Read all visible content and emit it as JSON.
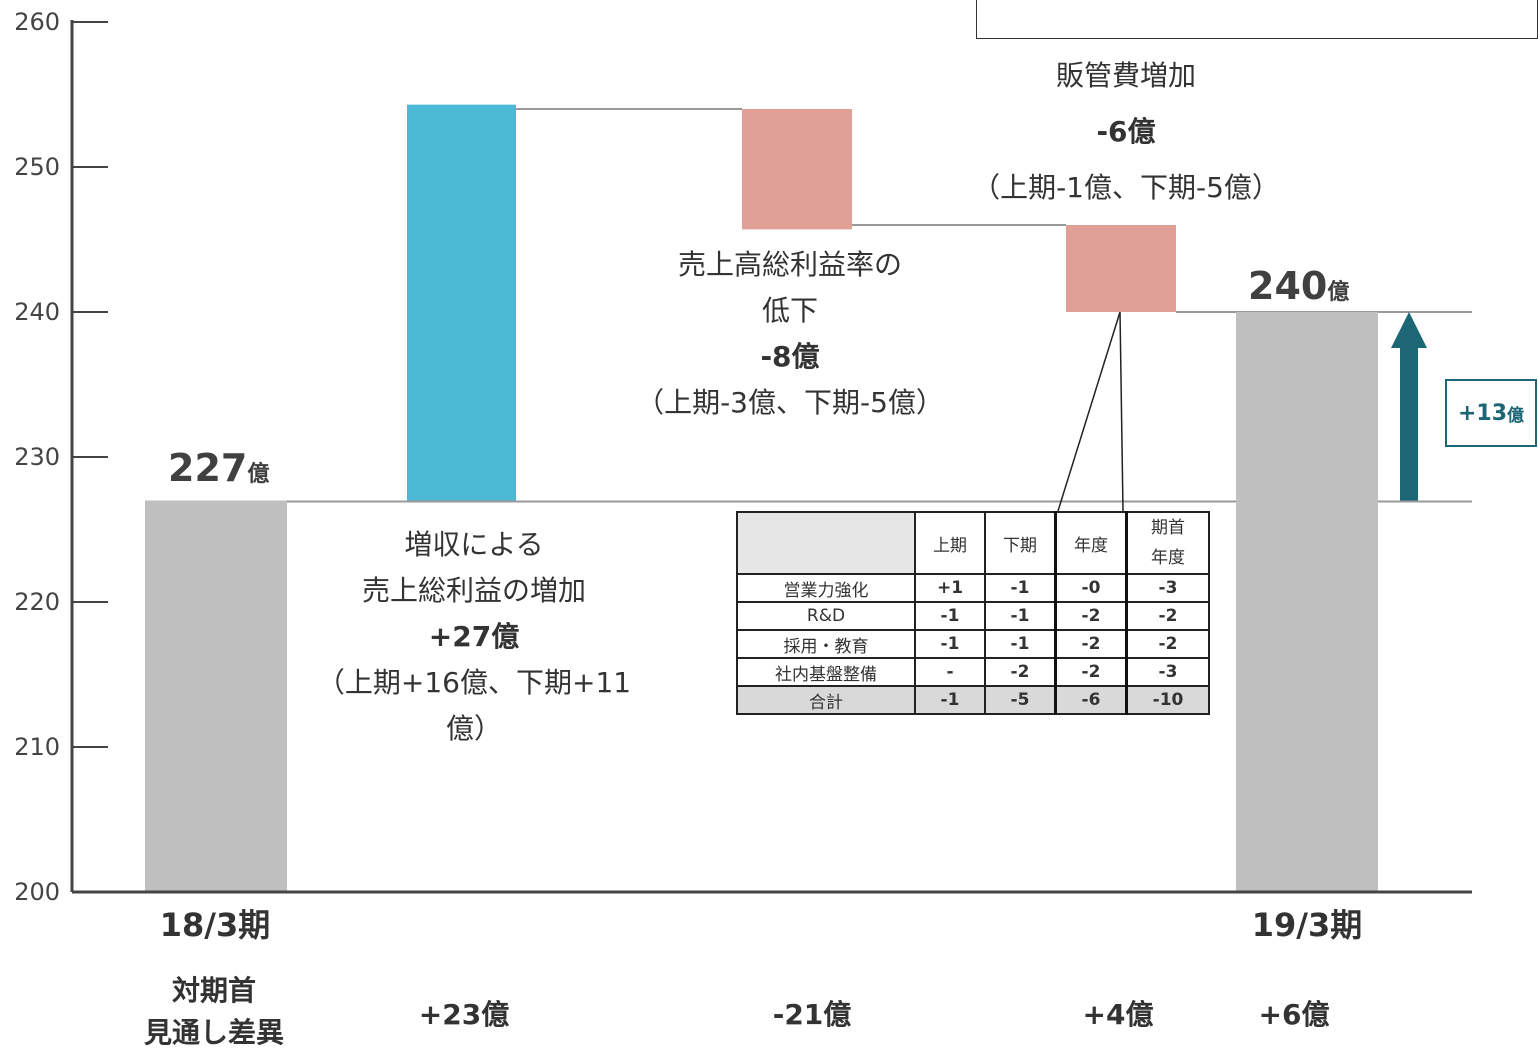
{
  "chart_data": {
    "type": "waterfall",
    "ylim": [
      200,
      260
    ],
    "yticks": [
      "200",
      "210",
      "220",
      "230",
      "240",
      "250",
      "260"
    ],
    "bars": [
      {
        "kind": "total",
        "start": 200,
        "end": 227,
        "color": "#bfbfbf"
      },
      {
        "kind": "increase",
        "start": 227,
        "end": 254.3,
        "color": "#4bb9d4"
      },
      {
        "kind": "decrease",
        "start": 254,
        "end": 245.7,
        "color": "#e0a098"
      },
      {
        "kind": "decrease",
        "start": 246,
        "end": 240,
        "color": "#e0a098"
      },
      {
        "kind": "total",
        "start": 200,
        "end": 240,
        "color": "#bfbfbf"
      }
    ],
    "reference_lines": [
      227,
      240
    ],
    "start_label": {
      "value": "227",
      "unit": "億"
    },
    "end_label": {
      "value": "240",
      "unit": "億"
    },
    "categories": {
      "start": "18/3期",
      "end": "19/3期"
    },
    "delta": {
      "value": "+13",
      "unit": "億",
      "color": "#1c6676"
    }
  },
  "annotations": {
    "increase": {
      "line1": "増収による",
      "line2": "売上総利益の増加",
      "amount": "+27億",
      "detail": "（上期+16億、下期+11億）"
    },
    "gross_margin": {
      "line1": "売上高総利益率の",
      "line2": "低下",
      "amount": "-8億",
      "detail": "（上期-3億、下期-5億）"
    },
    "sga": {
      "line1": "販管費増加",
      "amount": "-6億",
      "detail": "（上期-1億、下期-5億）"
    }
  },
  "diff_row": {
    "label_line1": "対期首",
    "label_line2": "見通し差異",
    "values": [
      "+23億",
      "-21億",
      "+4億",
      "+6億"
    ]
  },
  "table": {
    "headers": [
      "",
      "上期",
      "下期",
      "年度",
      "期首年度"
    ],
    "header_last_line1": "期首",
    "header_last_line2": "年度",
    "rows": [
      {
        "label": "営業力強化",
        "values": [
          "+1",
          "-1",
          "-0",
          "-3"
        ]
      },
      {
        "label": "R&D",
        "values": [
          "-1",
          "-1",
          "-2",
          "-2"
        ]
      },
      {
        "label": "採用・教育",
        "values": [
          "-1",
          "-1",
          "-2",
          "-2"
        ]
      },
      {
        "label": "社内基盤整備",
        "values": [
          "-",
          "-2",
          "-2",
          "-3"
        ]
      },
      {
        "label": "合計",
        "values": [
          "-1",
          "-5",
          "-6",
          "-10"
        ]
      }
    ]
  }
}
